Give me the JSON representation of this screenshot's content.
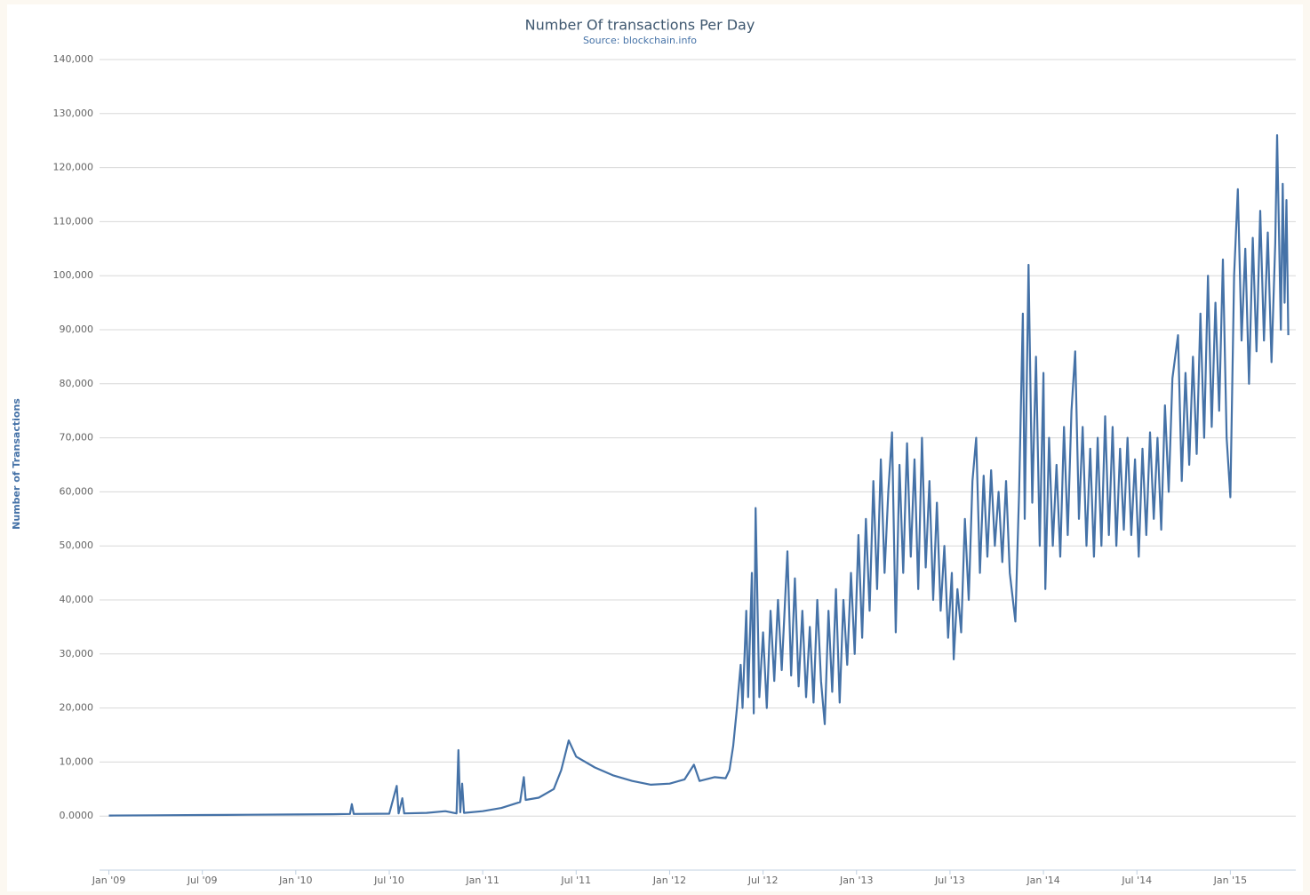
{
  "chart_data": {
    "type": "line",
    "title": "Number Of transactions Per Day",
    "subtitle": "Source: blockchain.info",
    "y_label": "Number of Transactions",
    "color": "#4572a7",
    "grid": true,
    "xlim": [
      2008.95,
      2015.35
    ],
    "xticks": [
      {
        "value": 2009.0,
        "label": "Jan '09"
      },
      {
        "value": 2009.5,
        "label": "Jul '09"
      },
      {
        "value": 2010.0,
        "label": "Jan '10"
      },
      {
        "value": 2010.5,
        "label": "Jul '10"
      },
      {
        "value": 2011.0,
        "label": "Jan '11"
      },
      {
        "value": 2011.5,
        "label": "Jul '11"
      },
      {
        "value": 2012.0,
        "label": "Jan '12"
      },
      {
        "value": 2012.5,
        "label": "Jul '12"
      },
      {
        "value": 2013.0,
        "label": "Jan '13"
      },
      {
        "value": 2013.5,
        "label": "Jul '13"
      },
      {
        "value": 2014.0,
        "label": "Jan '14"
      },
      {
        "value": 2014.5,
        "label": "Jul '14"
      },
      {
        "value": 2015.0,
        "label": "Jan '15"
      }
    ],
    "ylim": [
      -10000,
      140000
    ],
    "yticks": [
      {
        "value": 0,
        "label": "0.0000"
      },
      {
        "value": 10000,
        "label": "10,000"
      },
      {
        "value": 20000,
        "label": "20,000"
      },
      {
        "value": 30000,
        "label": "30,000"
      },
      {
        "value": 40000,
        "label": "40,000"
      },
      {
        "value": 50000,
        "label": "50,000"
      },
      {
        "value": 60000,
        "label": "60,000"
      },
      {
        "value": 70000,
        "label": "70,000"
      },
      {
        "value": 80000,
        "label": "80,000"
      },
      {
        "value": 90000,
        "label": "90,000"
      },
      {
        "value": 100000,
        "label": "100,000"
      },
      {
        "value": 110000,
        "label": "110,000"
      },
      {
        "value": 120000,
        "label": "120,000"
      },
      {
        "value": 130000,
        "label": "130,000"
      },
      {
        "value": 140000,
        "label": "140,000"
      }
    ],
    "x": [
      2009.0,
      2009.25,
      2009.5,
      2009.75,
      2010.0,
      2010.2,
      2010.29,
      2010.3,
      2010.31,
      2010.5,
      2010.54,
      2010.55,
      2010.57,
      2010.58,
      2010.7,
      2010.8,
      2010.86,
      2010.87,
      2010.88,
      2010.89,
      2010.9,
      2011.0,
      2011.1,
      2011.2,
      2011.22,
      2011.23,
      2011.3,
      2011.38,
      2011.42,
      2011.46,
      2011.5,
      2011.6,
      2011.7,
      2011.8,
      2011.9,
      2012.0,
      2012.08,
      2012.13,
      2012.16,
      2012.24,
      2012.3,
      2012.32,
      2012.34,
      2012.36,
      2012.38,
      2012.39,
      2012.41,
      2012.42,
      2012.44,
      2012.45,
      2012.46,
      2012.48,
      2012.5,
      2012.52,
      2012.54,
      2012.56,
      2012.58,
      2012.6,
      2012.63,
      2012.65,
      2012.67,
      2012.69,
      2012.71,
      2012.73,
      2012.75,
      2012.77,
      2012.79,
      2012.81,
      2012.83,
      2012.85,
      2012.87,
      2012.89,
      2012.91,
      2012.93,
      2012.95,
      2012.97,
      2012.99,
      2013.01,
      2013.03,
      2013.05,
      2013.07,
      2013.09,
      2013.11,
      2013.13,
      2013.15,
      2013.17,
      2013.19,
      2013.21,
      2013.23,
      2013.25,
      2013.27,
      2013.29,
      2013.31,
      2013.33,
      2013.35,
      2013.37,
      2013.39,
      2013.41,
      2013.43,
      2013.45,
      2013.47,
      2013.49,
      2013.51,
      2013.52,
      2013.54,
      2013.56,
      2013.58,
      2013.6,
      2013.62,
      2013.64,
      2013.66,
      2013.68,
      2013.7,
      2013.72,
      2013.74,
      2013.76,
      2013.78,
      2013.8,
      2013.82,
      2013.85,
      2013.87,
      2013.89,
      2013.9,
      2013.92,
      2013.94,
      2013.96,
      2013.98,
      2014.0,
      2014.01,
      2014.03,
      2014.05,
      2014.07,
      2014.09,
      2014.11,
      2014.13,
      2014.15,
      2014.17,
      2014.19,
      2014.21,
      2014.23,
      2014.25,
      2014.27,
      2014.29,
      2014.31,
      2014.33,
      2014.35,
      2014.37,
      2014.39,
      2014.41,
      2014.43,
      2014.45,
      2014.47,
      2014.49,
      2014.51,
      2014.53,
      2014.55,
      2014.57,
      2014.59,
      2014.61,
      2014.63,
      2014.65,
      2014.67,
      2014.69,
      2014.72,
      2014.74,
      2014.76,
      2014.78,
      2014.8,
      2014.82,
      2014.84,
      2014.86,
      2014.88,
      2014.9,
      2014.92,
      2014.94,
      2014.96,
      2014.98,
      2015.0,
      2015.02,
      2015.04,
      2015.06,
      2015.08,
      2015.1,
      2015.12,
      2015.14,
      2015.16,
      2015.18,
      2015.2,
      2015.22,
      2015.24,
      2015.25,
      2015.27,
      2015.28,
      2015.29,
      2015.3,
      2015.31
    ],
    "values": [
      100,
      150,
      200,
      250,
      300,
      350,
      400,
      2200,
      400,
      450,
      5600,
      500,
      3300,
      500,
      600,
      900,
      500,
      12200,
      700,
      6000,
      600,
      900,
      1500,
      2600,
      7200,
      3000,
      3400,
      5000,
      8500,
      14000,
      11000,
      9000,
      7500,
      6500,
      5800,
      6000,
      6800,
      9500,
      6500,
      7200,
      7000,
      8500,
      13000,
      20000,
      28000,
      20000,
      38000,
      22000,
      45000,
      19000,
      57000,
      22000,
      34000,
      20000,
      38000,
      25000,
      40000,
      27000,
      49000,
      26000,
      44000,
      24000,
      38000,
      22000,
      35000,
      21000,
      40000,
      25000,
      17000,
      38000,
      23000,
      42000,
      21000,
      40000,
      28000,
      45000,
      30000,
      52000,
      33000,
      55000,
      38000,
      62000,
      42000,
      66000,
      45000,
      60000,
      71000,
      34000,
      65000,
      45000,
      69000,
      48000,
      66000,
      42000,
      70000,
      46000,
      62000,
      40000,
      58000,
      38000,
      50000,
      33000,
      45000,
      29000,
      42000,
      34000,
      55000,
      40000,
      62000,
      70000,
      45000,
      63000,
      48000,
      64000,
      50000,
      60000,
      47000,
      62000,
      45000,
      36000,
      60000,
      93000,
      55000,
      102000,
      58000,
      85000,
      50000,
      82000,
      42000,
      70000,
      50000,
      65000,
      48000,
      72000,
      52000,
      75000,
      86000,
      55000,
      72000,
      50000,
      68000,
      48000,
      70000,
      50000,
      74000,
      52000,
      72000,
      50000,
      68000,
      53000,
      70000,
      52000,
      66000,
      48000,
      68000,
      52000,
      71000,
      55000,
      70000,
      53000,
      76000,
      60000,
      81000,
      89000,
      62000,
      82000,
      65000,
      85000,
      67000,
      93000,
      70000,
      100000,
      72000,
      95000,
      75000,
      103000,
      70000,
      59000,
      100000,
      116000,
      88000,
      105000,
      80000,
      107000,
      86000,
      112000,
      88000,
      108000,
      84000,
      106000,
      126000,
      90000,
      117000,
      95000,
      114000,
      89000
    ]
  }
}
